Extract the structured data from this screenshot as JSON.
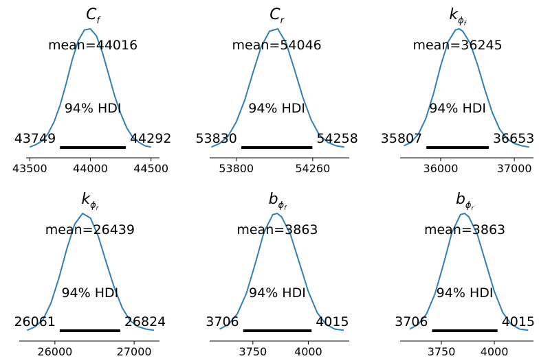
{
  "chart_data": [
    {
      "type": "line",
      "title": {
        "base": "C",
        "sub": "f",
        "subsub": ""
      },
      "mean_label": "mean=44016",
      "hdi_label": "94% HDI",
      "hdi": [
        43749,
        44292
      ],
      "hdi_low_label": "43749",
      "hdi_high_label": "44292",
      "xlim": [
        43470,
        44570
      ],
      "xticks": [
        43500,
        44000,
        44500
      ],
      "xtick_labels": [
        "43500",
        "44000",
        "44500"
      ],
      "density": {
        "x": [
          43500,
          43550,
          43600,
          43650,
          43700,
          43750,
          43800,
          43850,
          43900,
          43950,
          44000,
          44050,
          44100,
          44150,
          44200,
          44250,
          44300,
          44350,
          44400,
          44450,
          44500
        ],
        "y": [
          0.01,
          0.03,
          0.06,
          0.12,
          0.22,
          0.36,
          0.54,
          0.74,
          0.9,
          0.99,
          1.0,
          0.94,
          0.8,
          0.62,
          0.44,
          0.29,
          0.17,
          0.09,
          0.05,
          0.02,
          0.01
        ]
      }
    },
    {
      "type": "line",
      "title": {
        "base": "C",
        "sub": "r",
        "subsub": ""
      },
      "mean_label": "mean=54046",
      "hdi_label": "94% HDI",
      "hdi": [
        53830,
        54258
      ],
      "hdi_low_label": "53830",
      "hdi_high_label": "54258",
      "xlim": [
        53640,
        54480
      ],
      "xticks": [
        53800,
        54260
      ],
      "xtick_labels": [
        "53800",
        "54260"
      ],
      "density": {
        "x": [
          53650,
          53700,
          53750,
          53800,
          53850,
          53900,
          53950,
          54000,
          54050,
          54100,
          54150,
          54200,
          54250,
          54300,
          54350,
          54400,
          54450
        ],
        "y": [
          0.01,
          0.04,
          0.1,
          0.22,
          0.4,
          0.63,
          0.85,
          0.98,
          1.0,
          0.88,
          0.66,
          0.43,
          0.24,
          0.11,
          0.05,
          0.02,
          0.01
        ]
      }
    },
    {
      "type": "line",
      "title": {
        "base": "k",
        "sub": "ϕ",
        "subsub": "f"
      },
      "mean_label": "mean=36245",
      "hdi_label": "94% HDI",
      "hdi": [
        35807,
        36653
      ],
      "hdi_low_label": "35807",
      "hdi_high_label": "36653",
      "xlim": [
        35450,
        37260
      ],
      "xticks": [
        36000,
        37000
      ],
      "xtick_labels": [
        "36000",
        "37000"
      ],
      "density": {
        "x": [
          35500,
          35600,
          35700,
          35800,
          35900,
          36000,
          36100,
          36200,
          36250,
          36300,
          36400,
          36500,
          36600,
          36700,
          36800,
          36900,
          37000,
          37100,
          37200
        ],
        "y": [
          0.02,
          0.05,
          0.12,
          0.25,
          0.45,
          0.69,
          0.89,
          0.99,
          1.0,
          0.98,
          0.88,
          0.7,
          0.49,
          0.3,
          0.16,
          0.08,
          0.04,
          0.02,
          0.01
        ]
      }
    },
    {
      "type": "line",
      "title": {
        "base": "k",
        "sub": "ϕ",
        "subsub": "r"
      },
      "mean_label": "mean=26439",
      "hdi_label": "94% HDI",
      "hdi": [
        26061,
        26824
      ],
      "hdi_low_label": "26061",
      "hdi_high_label": "26824",
      "xlim": [
        25550,
        27320
      ],
      "xticks": [
        26000,
        27000
      ],
      "xtick_labels": [
        "26000",
        "27000"
      ],
      "density": {
        "x": [
          25650,
          25750,
          25850,
          25950,
          26050,
          26150,
          26250,
          26350,
          26450,
          26550,
          26650,
          26750,
          26850,
          26950,
          27050,
          27150,
          27250
        ],
        "y": [
          0.01,
          0.04,
          0.1,
          0.24,
          0.45,
          0.7,
          0.91,
          1.0,
          0.96,
          0.8,
          0.58,
          0.37,
          0.2,
          0.09,
          0.04,
          0.02,
          0.01
        ]
      }
    },
    {
      "type": "line",
      "title": {
        "base": "b",
        "sub": "ϕ",
        "subsub": "f"
      },
      "mean_label": "mean=3863",
      "hdi_label": "94% HDI",
      "hdi": [
        3706,
        4015
      ],
      "hdi_low_label": "3706",
      "hdi_high_label": "4015",
      "xlim": [
        3555,
        4185
      ],
      "xticks": [
        3750,
        4000
      ],
      "xtick_labels": [
        "3750",
        "4000"
      ],
      "density": {
        "x": [
          3600,
          3640,
          3680,
          3720,
          3760,
          3800,
          3840,
          3860,
          3880,
          3920,
          3960,
          4000,
          4040,
          4080,
          4120,
          4160
        ],
        "y": [
          0.02,
          0.06,
          0.15,
          0.32,
          0.57,
          0.84,
          0.99,
          1.0,
          0.97,
          0.82,
          0.58,
          0.34,
          0.16,
          0.06,
          0.02,
          0.01
        ]
      }
    },
    {
      "type": "line",
      "title": {
        "base": "b",
        "sub": "ϕ",
        "subsub": "r"
      },
      "mean_label": "mean=3863",
      "hdi_label": "94% HDI",
      "hdi": [
        3706,
        4015
      ],
      "hdi_low_label": "3706",
      "hdi_high_label": "4015",
      "xlim": [
        3555,
        4185
      ],
      "xticks": [
        3750,
        4000
      ],
      "xtick_labels": [
        "3750",
        "4000"
      ],
      "density": {
        "x": [
          3600,
          3640,
          3680,
          3720,
          3760,
          3800,
          3840,
          3860,
          3880,
          3920,
          3960,
          4000,
          4040,
          4080,
          4120,
          4160
        ],
        "y": [
          0.02,
          0.06,
          0.15,
          0.32,
          0.57,
          0.84,
          0.99,
          1.0,
          0.97,
          0.82,
          0.58,
          0.34,
          0.16,
          0.06,
          0.02,
          0.01
        ]
      }
    }
  ],
  "colors": {
    "density_line": "#2f7fb5",
    "hdi_bar": "#000000",
    "axis": "#000000"
  }
}
